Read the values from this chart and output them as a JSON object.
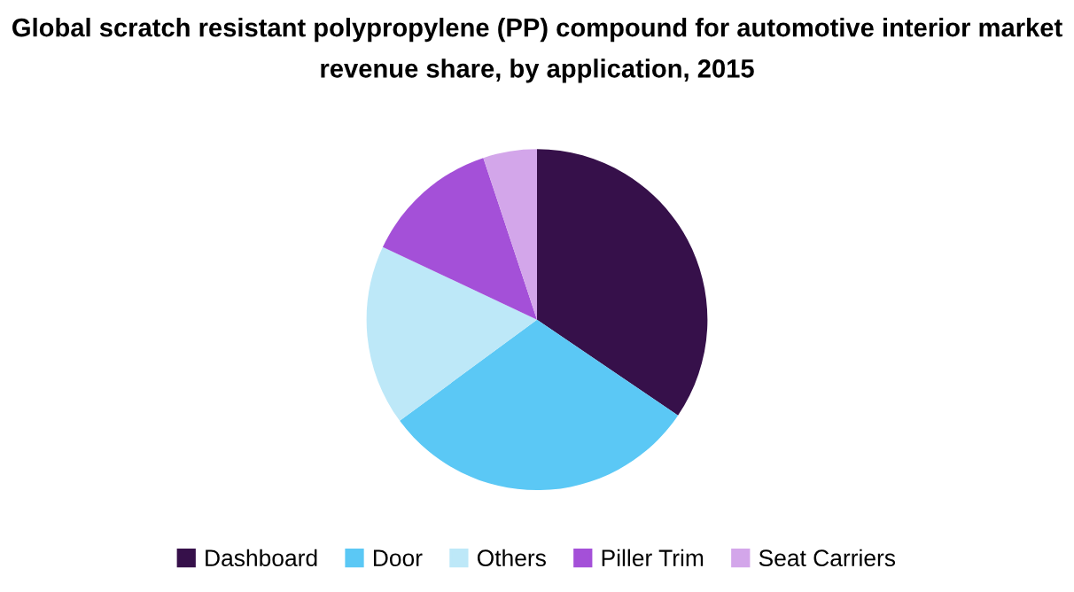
{
  "chart_data": {
    "type": "pie",
    "title": "Global scratch resistant polypropylene (PP) compound for automotive interior market revenue share, by application, 2015",
    "categories": [
      "Dashboard",
      "Door",
      "Others",
      "Piller Trim",
      "Seat Carriers"
    ],
    "values": [
      34.5,
      30.4,
      17.1,
      12.9,
      5.1
    ],
    "colors": [
      "#36104a",
      "#5bc8f5",
      "#bde8f8",
      "#a450d8",
      "#d3a6ea"
    ],
    "legend": "bottom"
  }
}
